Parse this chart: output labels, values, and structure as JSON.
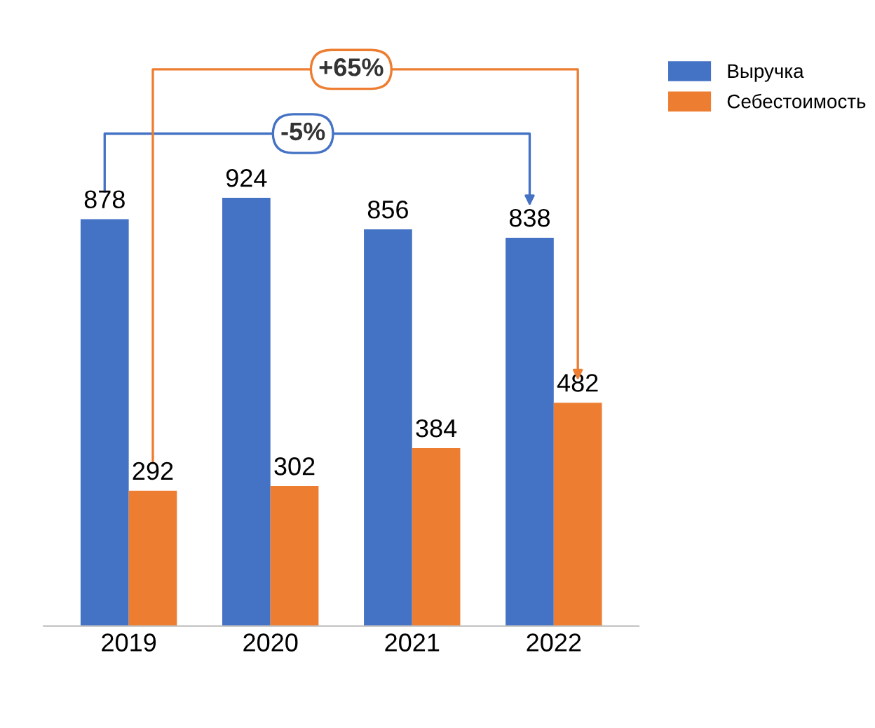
{
  "chart_data": {
    "type": "bar",
    "categories": [
      "2019",
      "2020",
      "2021",
      "2022"
    ],
    "series": [
      {
        "name": "Выручка",
        "color": "#4472c4",
        "values": [
          878,
          924,
          856,
          838
        ]
      },
      {
        "name": "Себестоимость",
        "color": "#ed7d31",
        "values": [
          292,
          302,
          384,
          482
        ]
      }
    ],
    "tick_labels": "x",
    "data_labels": true,
    "grid": false,
    "legend": "top right",
    "annotations": [
      "-5%",
      "+65%"
    ]
  }
}
